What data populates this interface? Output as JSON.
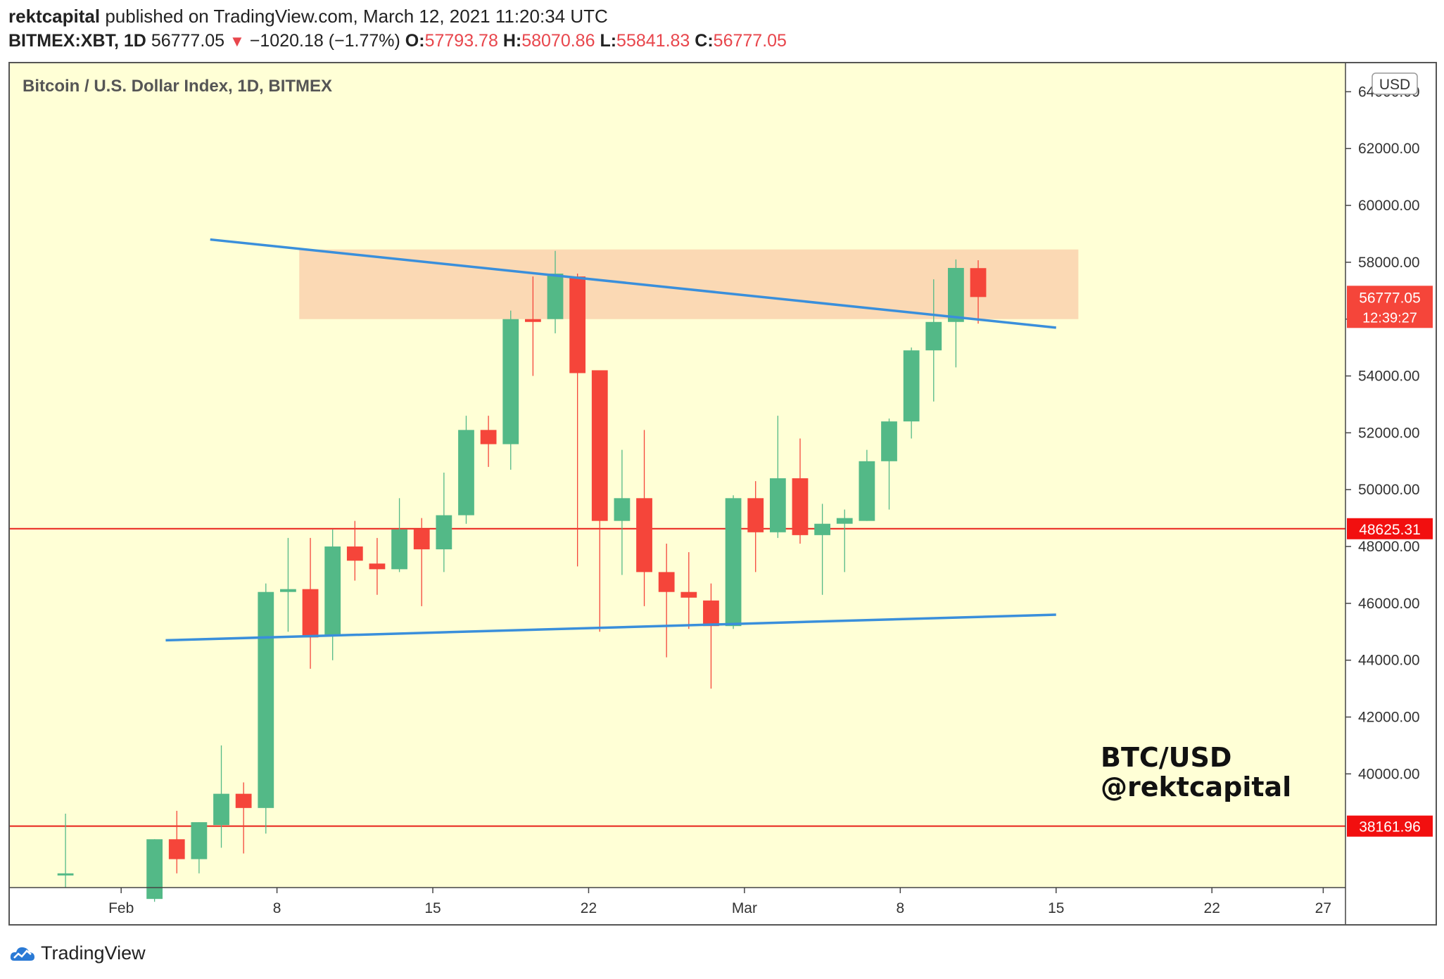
{
  "header": {
    "author": "rektcapital",
    "published_text": "published on TradingView.com, March 12, 2021 11:20:34 UTC",
    "symbol": "BITMEX:XBT, 1D",
    "last": "56777.05",
    "change": "−1020.18 (−1.77%)",
    "o_label": "O:",
    "o_value": "57793.78",
    "h_label": "H:",
    "h_value": "58070.86",
    "l_label": "L:",
    "l_value": "55841.83",
    "c_label": "C:",
    "c_value": "56777.05"
  },
  "footer": {
    "logo_text": "TradingView",
    "logo_icon": "tradingview-cloud-icon"
  },
  "colors": {
    "background": "#ffffd6",
    "up": "#53b987",
    "down": "#f5453a",
    "trendline": "#3a8fdb",
    "zone": "#fbd9b4",
    "level": "#e8201a"
  },
  "chart_data": {
    "type": "candlestick",
    "title": "Bitcoin / U.S. Dollar Index, 1D, BITMEX",
    "currency_badge": "USD",
    "watermark_line1": "BTC/USD",
    "watermark_line2": "@rektcapital",
    "ylim": [
      36000,
      65000
    ],
    "y_ticks": [
      "40000.00",
      "42000.00",
      "44000.00",
      "46000.00",
      "48000.00",
      "50000.00",
      "52000.00",
      "54000.00",
      "56000.00",
      "58000.00",
      "60000.00",
      "62000.00",
      "64000.00"
    ],
    "x_ticks": [
      {
        "label": "Feb",
        "date": "2021-02-01"
      },
      {
        "label": "8",
        "date": "2021-02-08"
      },
      {
        "label": "15",
        "date": "2021-02-15"
      },
      {
        "label": "22",
        "date": "2021-02-22"
      },
      {
        "label": "Mar",
        "date": "2021-03-01"
      },
      {
        "label": "8",
        "date": "2021-03-08"
      },
      {
        "label": "15",
        "date": "2021-03-15"
      },
      {
        "label": "22",
        "date": "2021-03-22"
      },
      {
        "label": "27",
        "date": "2021-03-27"
      }
    ],
    "x_range": [
      "2021-01-27",
      "2021-03-28"
    ],
    "candles": [
      {
        "date": "2021-01-29",
        "o": 36500,
        "h": 38600,
        "l": 36000,
        "c": 36500
      },
      {
        "date": "2021-02-02",
        "o": 35600,
        "h": 37700,
        "l": 35500,
        "c": 37700
      },
      {
        "date": "2021-02-03",
        "o": 37700,
        "h": 38700,
        "l": 36500,
        "c": 37000
      },
      {
        "date": "2021-02-04",
        "o": 37000,
        "h": 38300,
        "l": 36500,
        "c": 38300
      },
      {
        "date": "2021-02-05",
        "o": 38200,
        "h": 41000,
        "l": 37400,
        "c": 39300
      },
      {
        "date": "2021-02-06",
        "o": 39300,
        "h": 39700,
        "l": 37200,
        "c": 38800
      },
      {
        "date": "2021-02-07",
        "o": 38800,
        "h": 46700,
        "l": 37900,
        "c": 46400
      },
      {
        "date": "2021-02-08",
        "o": 46400,
        "h": 48300,
        "l": 45000,
        "c": 46500
      },
      {
        "date": "2021-02-09",
        "o": 46500,
        "h": 48300,
        "l": 43700,
        "c": 44800
      },
      {
        "date": "2021-02-10",
        "o": 44900,
        "h": 48600,
        "l": 44000,
        "c": 48000
      },
      {
        "date": "2021-02-11",
        "o": 48000,
        "h": 48900,
        "l": 46800,
        "c": 47500
      },
      {
        "date": "2021-02-12",
        "o": 47400,
        "h": 48300,
        "l": 46300,
        "c": 47200
      },
      {
        "date": "2021-02-13",
        "o": 47200,
        "h": 49700,
        "l": 47100,
        "c": 48600
      },
      {
        "date": "2021-02-14",
        "o": 48600,
        "h": 49000,
        "l": 45900,
        "c": 47900
      },
      {
        "date": "2021-02-15",
        "o": 47900,
        "h": 50600,
        "l": 47100,
        "c": 49100
      },
      {
        "date": "2021-02-16",
        "o": 49100,
        "h": 52600,
        "l": 48800,
        "c": 52100
      },
      {
        "date": "2021-02-17",
        "o": 52100,
        "h": 52600,
        "l": 50800,
        "c": 51600
      },
      {
        "date": "2021-02-18",
        "o": 51600,
        "h": 56300,
        "l": 50700,
        "c": 56000
      },
      {
        "date": "2021-02-19",
        "o": 56000,
        "h": 57500,
        "l": 54000,
        "c": 55900
      },
      {
        "date": "2021-02-20",
        "o": 56000,
        "h": 58400,
        "l": 55500,
        "c": 57600
      },
      {
        "date": "2021-02-21",
        "o": 57500,
        "h": 57600,
        "l": 47300,
        "c": 54100
      },
      {
        "date": "2021-02-22",
        "o": 54200,
        "h": 54200,
        "l": 45000,
        "c": 48900
      },
      {
        "date": "2021-02-23",
        "o": 48900,
        "h": 51400,
        "l": 47000,
        "c": 49700
      },
      {
        "date": "2021-02-24",
        "o": 49700,
        "h": 52100,
        "l": 45900,
        "c": 47100
      },
      {
        "date": "2021-02-25",
        "o": 47100,
        "h": 48100,
        "l": 44100,
        "c": 46400
      },
      {
        "date": "2021-02-26",
        "o": 46400,
        "h": 47800,
        "l": 45100,
        "c": 46200
      },
      {
        "date": "2021-02-27",
        "o": 46100,
        "h": 46700,
        "l": 43000,
        "c": 45200
      },
      {
        "date": "2021-02-28",
        "o": 45200,
        "h": 49800,
        "l": 45100,
        "c": 49700
      },
      {
        "date": "2021-03-01",
        "o": 49700,
        "h": 50300,
        "l": 47100,
        "c": 48500
      },
      {
        "date": "2021-03-02",
        "o": 48500,
        "h": 52600,
        "l": 48300,
        "c": 50400
      },
      {
        "date": "2021-03-03",
        "o": 50400,
        "h": 51800,
        "l": 48100,
        "c": 48400
      },
      {
        "date": "2021-03-04",
        "o": 48400,
        "h": 49500,
        "l": 46300,
        "c": 48800
      },
      {
        "date": "2021-03-05",
        "o": 48800,
        "h": 49300,
        "l": 47100,
        "c": 49000
      },
      {
        "date": "2021-03-06",
        "o": 48900,
        "h": 51400,
        "l": 48900,
        "c": 51000
      },
      {
        "date": "2021-03-07",
        "o": 51000,
        "h": 52500,
        "l": 49300,
        "c": 52400
      },
      {
        "date": "2021-03-08",
        "o": 52400,
        "h": 55000,
        "l": 51800,
        "c": 54900
      },
      {
        "date": "2021-03-09",
        "o": 54900,
        "h": 57400,
        "l": 53100,
        "c": 55900
      },
      {
        "date": "2021-03-10",
        "o": 55900,
        "h": 58100,
        "l": 54300,
        "c": 57800
      },
      {
        "date": "2021-03-11",
        "o": 57793.78,
        "h": 58070.86,
        "l": 55841.83,
        "c": 56777.05
      }
    ],
    "zone": {
      "from_date": "2021-02-09",
      "to_date": "2021-03-16",
      "low": 56000,
      "high": 58450
    },
    "trendlines": [
      {
        "name": "descending resistance",
        "points": [
          {
            "date": "2021-02-05",
            "value": 58800
          },
          {
            "date": "2021-03-15",
            "value": 55700
          }
        ]
      },
      {
        "name": "ascending support",
        "points": [
          {
            "date": "2021-02-03",
            "value": 44700
          },
          {
            "date": "2021-03-15",
            "value": 45600
          }
        ]
      }
    ],
    "levels": [
      {
        "value": 48625.31,
        "label": "48625.31"
      },
      {
        "value": 38161.96,
        "label": "38161.96"
      }
    ],
    "price_label": {
      "value": 56777.05,
      "label": "56777.05",
      "countdown": "12:39:27"
    }
  }
}
